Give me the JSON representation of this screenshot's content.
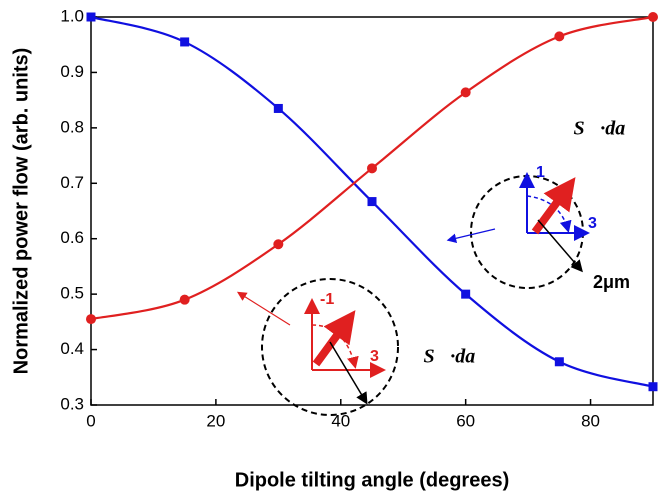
{
  "chart_data": {
    "type": "line",
    "x_label": "Dipole tilting angle (degrees)",
    "y_label": "Normalized power flow (arb. units)",
    "x": [
      0,
      15,
      30,
      45,
      60,
      75,
      90
    ],
    "series": [
      {
        "color": "#1010e0",
        "marker": "square",
        "values": [
          1.0,
          0.955,
          0.835,
          0.667,
          0.5,
          0.378,
          0.333
        ]
      },
      {
        "color": "#e02020",
        "marker": "circle",
        "values": [
          0.455,
          0.49,
          0.59,
          0.727,
          0.864,
          0.965,
          1.0
        ]
      }
    ],
    "xlim": [
      0,
      90
    ],
    "xticks": [
      0,
      20,
      40,
      60,
      80
    ],
    "ylim": [
      0.3,
      1.0
    ],
    "yticks": [
      0.3,
      0.4,
      0.5,
      0.6,
      0.7,
      0.8,
      0.9,
      {
        "value": 1.0,
        "label": "1.0"
      }
    ],
    "annotations": {
      "integral_top": "∯S⃗·da⃗",
      "integral_bottom": "∯S⃗·da⃗",
      "top_axis_1": "1",
      "top_axis_3": "3",
      "scale": "2μm",
      "bottom_axis_1": "-1",
      "bottom_axis_3": "3"
    }
  }
}
